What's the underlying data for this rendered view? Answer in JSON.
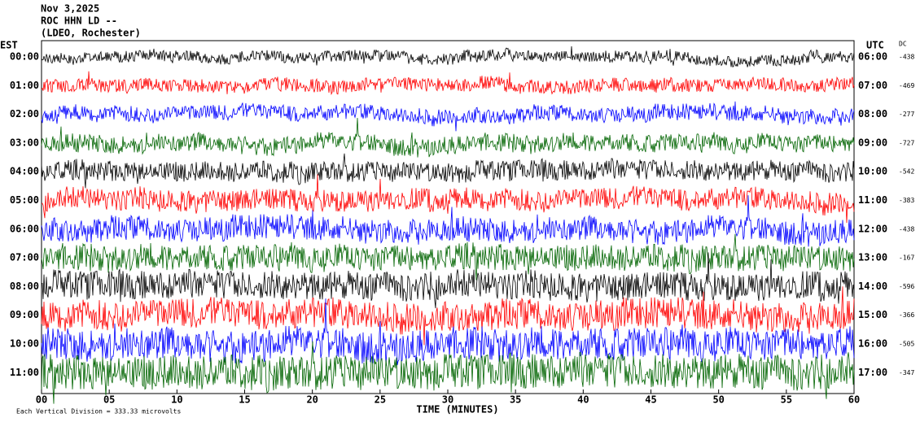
{
  "header": {
    "date": "Nov 3,2025",
    "station": "ROC HHN LD --",
    "location": "(LDEO, Rochester)"
  },
  "left_axis_title": "EST",
  "right_axis_title": "UTC",
  "dc_title": "DC",
  "trace_colors": [
    "#000000",
    "#ff0000",
    "#0000ff",
    "#006400"
  ],
  "rows": [
    {
      "est": "00:00",
      "utc": "06:00",
      "dc": "-438"
    },
    {
      "est": "01:00",
      "utc": "07:00",
      "dc": "-469"
    },
    {
      "est": "02:00",
      "utc": "08:00",
      "dc": "-277"
    },
    {
      "est": "03:00",
      "utc": "09:00",
      "dc": "-727"
    },
    {
      "est": "04:00",
      "utc": "10:00",
      "dc": "-542"
    },
    {
      "est": "05:00",
      "utc": "11:00",
      "dc": "-383"
    },
    {
      "est": "06:00",
      "utc": "12:00",
      "dc": "-438"
    },
    {
      "est": "07:00",
      "utc": "13:00",
      "dc": "-167"
    },
    {
      "est": "08:00",
      "utc": "14:00",
      "dc": "-596"
    },
    {
      "est": "09:00",
      "utc": "15:00",
      "dc": "-366"
    },
    {
      "est": "10:00",
      "utc": "16:00",
      "dc": "-505"
    },
    {
      "est": "11:00",
      "utc": "17:00",
      "dc": "-347"
    }
  ],
  "x_ticks": [
    "00",
    "05",
    "10",
    "15",
    "20",
    "25",
    "30",
    "35",
    "40",
    "45",
    "50",
    "55",
    "60"
  ],
  "x_axis_title": "TIME (MINUTES)",
  "footer": "Each Vertical Division =  333.33 microvolts"
}
